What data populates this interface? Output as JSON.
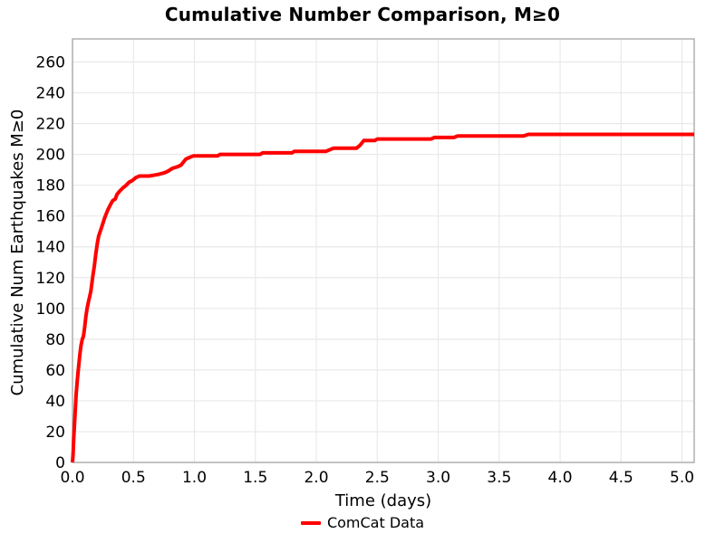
{
  "chart_data": {
    "type": "line",
    "title": "Cumulative Number Comparison, M≥0",
    "xlabel": "Time (days)",
    "ylabel": "Cumulative Num Earthquakes M≥0",
    "xlim": [
      0,
      5.1
    ],
    "ylim": [
      0,
      275
    ],
    "x_ticks": [
      "0.0",
      "0.5",
      "1.0",
      "1.5",
      "2.0",
      "2.5",
      "3.0",
      "3.5",
      "4.0",
      "4.5",
      "5.0"
    ],
    "x_tick_values": [
      0.0,
      0.5,
      1.0,
      1.5,
      2.0,
      2.5,
      3.0,
      3.5,
      4.0,
      4.5,
      5.0
    ],
    "y_ticks": [
      "0",
      "20",
      "40",
      "60",
      "80",
      "100",
      "120",
      "140",
      "160",
      "180",
      "200",
      "220",
      "240",
      "260"
    ],
    "y_tick_values": [
      0,
      20,
      40,
      60,
      80,
      100,
      120,
      140,
      160,
      180,
      200,
      220,
      240,
      260
    ],
    "grid": true,
    "grid_color": "#e9e9e9",
    "spine_color": "#aaaaaa",
    "background_color": "#ffffff",
    "legend_position": "bottom-center",
    "series": [
      {
        "name": "ComCat Data",
        "color": "#ff0000",
        "linewidth": 4,
        "points": [
          [
            0,
            0
          ],
          [
            0.005,
            6
          ],
          [
            0.01,
            15
          ],
          [
            0.02,
            30
          ],
          [
            0.03,
            44
          ],
          [
            0.04,
            54
          ],
          [
            0.05,
            62
          ],
          [
            0.06,
            70
          ],
          [
            0.07,
            76
          ],
          [
            0.08,
            80
          ],
          [
            0.09,
            82
          ],
          [
            0.1,
            88
          ],
          [
            0.11,
            95
          ],
          [
            0.12,
            100
          ],
          [
            0.13,
            104
          ],
          [
            0.15,
            111
          ],
          [
            0.165,
            120
          ],
          [
            0.18,
            128
          ],
          [
            0.19,
            135
          ],
          [
            0.205,
            143
          ],
          [
            0.215,
            147
          ],
          [
            0.24,
            153
          ],
          [
            0.265,
            159
          ],
          [
            0.29,
            164
          ],
          [
            0.315,
            168
          ],
          [
            0.33,
            170
          ],
          [
            0.35,
            171
          ],
          [
            0.365,
            174
          ],
          [
            0.385,
            176
          ],
          [
            0.41,
            178
          ],
          [
            0.44,
            180
          ],
          [
            0.465,
            182
          ],
          [
            0.49,
            183
          ],
          [
            0.52,
            185
          ],
          [
            0.55,
            186
          ],
          [
            0.63,
            186
          ],
          [
            0.7,
            187
          ],
          [
            0.75,
            188
          ],
          [
            0.78,
            189
          ],
          [
            0.82,
            191
          ],
          [
            0.86,
            192
          ],
          [
            0.89,
            193
          ],
          [
            0.91,
            195
          ],
          [
            0.93,
            197
          ],
          [
            0.96,
            198
          ],
          [
            0.99,
            199
          ],
          [
            1.19,
            199
          ],
          [
            1.21,
            200
          ],
          [
            1.54,
            200
          ],
          [
            1.56,
            201
          ],
          [
            1.8,
            201
          ],
          [
            1.82,
            202
          ],
          [
            2.08,
            202
          ],
          [
            2.11,
            203
          ],
          [
            2.14,
            204
          ],
          [
            2.33,
            204
          ],
          [
            2.36,
            206
          ],
          [
            2.39,
            209
          ],
          [
            2.48,
            209
          ],
          [
            2.5,
            210
          ],
          [
            2.94,
            210
          ],
          [
            2.97,
            211
          ],
          [
            3.13,
            211
          ],
          [
            3.16,
            212
          ],
          [
            3.7,
            212
          ],
          [
            3.74,
            213
          ],
          [
            5.1,
            213
          ]
        ]
      }
    ]
  }
}
